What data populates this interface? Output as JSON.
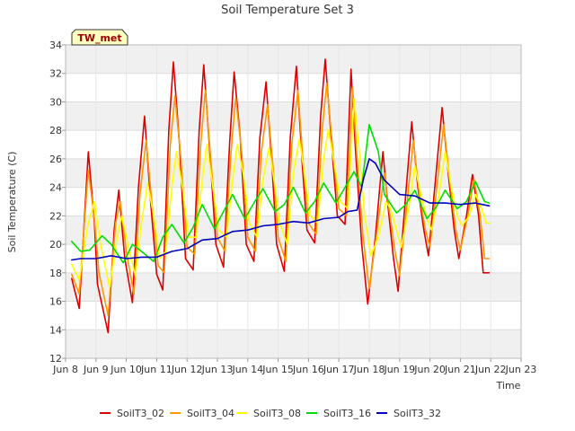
{
  "chart_data": {
    "type": "line",
    "title": "Soil Temperature Set 3",
    "xlabel": "Time",
    "ylabel": "Soil Temperature (C)",
    "station_label": "TW_met",
    "xlim": [
      8,
      23
    ],
    "ylim": [
      12,
      34
    ],
    "x_ticks": [
      8,
      9,
      10,
      11,
      12,
      13,
      14,
      15,
      16,
      17,
      18,
      19,
      20,
      21,
      22,
      23
    ],
    "x_tick_labels": [
      "Jun 8",
      "Jun 9",
      "Jun 10",
      "Jun 11",
      "Jun 12",
      "Jun 13",
      "Jun 14",
      "Jun 15",
      "Jun 16",
      "Jun 17",
      "Jun 18",
      "Jun 19",
      "Jun 20",
      "Jun 21",
      "Jun 22",
      "Jun 23"
    ],
    "y_ticks": [
      12,
      14,
      16,
      18,
      20,
      22,
      24,
      26,
      28,
      30,
      32,
      34
    ],
    "y_tick_labels": [
      "12",
      "14",
      "16",
      "18",
      "20",
      "22",
      "24",
      "26",
      "28",
      "30",
      "32",
      "34"
    ],
    "grid": true,
    "legend_position": "bottom",
    "colors": {
      "plot_band": "#f0f0f0",
      "plot_bg": "#ffffff",
      "axis": "#bbbbbb",
      "label_bg": "#ffffc0",
      "label_text": "#990000"
    },
    "series": [
      {
        "name": "SoilT3_02",
        "color": "#dd0000",
        "x": [
          8.2,
          8.45,
          8.75,
          8.95,
          9.05,
          9.4,
          9.6,
          9.75,
          9.95,
          10.2,
          10.4,
          10.6,
          10.8,
          11.0,
          11.2,
          11.4,
          11.55,
          11.75,
          11.95,
          12.2,
          12.4,
          12.55,
          12.75,
          12.95,
          13.2,
          13.4,
          13.55,
          13.75,
          13.95,
          14.2,
          14.4,
          14.6,
          14.8,
          14.95,
          15.2,
          15.4,
          15.6,
          15.8,
          15.95,
          16.2,
          16.4,
          16.55,
          16.8,
          16.95,
          17.2,
          17.4,
          17.55,
          17.75,
          17.95,
          18.2,
          18.45,
          18.6,
          18.8,
          18.95,
          19.2,
          19.4,
          19.6,
          19.8,
          19.95,
          20.2,
          20.4,
          20.6,
          20.8,
          20.95,
          21.2,
          21.4,
          21.6,
          21.75,
          21.95
        ],
        "y": [
          17.6,
          15.5,
          26.5,
          21.5,
          17.2,
          13.8,
          21.0,
          23.8,
          19.0,
          15.9,
          24.0,
          29.0,
          23.0,
          17.9,
          16.8,
          28.0,
          32.8,
          27.0,
          19.0,
          18.2,
          28.0,
          32.6,
          26.5,
          20.0,
          18.4,
          27.0,
          32.1,
          27.5,
          20.0,
          18.8,
          27.5,
          31.4,
          25.5,
          20.0,
          18.1,
          27.5,
          32.5,
          25.5,
          21.0,
          20.1,
          29.0,
          33.0,
          26.0,
          22.0,
          21.4,
          32.3,
          26.5,
          20.0,
          15.8,
          20.5,
          26.5,
          23.0,
          19.0,
          16.7,
          23.5,
          28.6,
          24.0,
          21.0,
          19.2,
          25.0,
          29.6,
          25.0,
          21.0,
          19.0,
          22.0,
          24.9,
          22.0,
          18.0,
          18.0
        ]
      },
      {
        "name": "SoilT3_04",
        "color": "#ff9900",
        "x": [
          8.2,
          8.45,
          8.75,
          8.95,
          9.1,
          9.4,
          9.65,
          9.8,
          10.0,
          10.25,
          10.45,
          10.65,
          10.85,
          11.05,
          11.25,
          11.45,
          11.6,
          11.8,
          12.0,
          12.25,
          12.45,
          12.6,
          12.8,
          13.0,
          13.25,
          13.45,
          13.6,
          13.8,
          14.0,
          14.25,
          14.45,
          14.65,
          14.85,
          15.0,
          15.25,
          15.45,
          15.65,
          15.85,
          16.0,
          16.25,
          16.45,
          16.6,
          16.85,
          17.0,
          17.25,
          17.45,
          17.6,
          17.8,
          18.0,
          18.25,
          18.5,
          18.65,
          18.85,
          19.0,
          19.25,
          19.45,
          19.65,
          19.85,
          20.0,
          20.25,
          20.45,
          20.65,
          20.85,
          21.0,
          21.25,
          21.45,
          21.65,
          21.8,
          21.95
        ],
        "y": [
          17.9,
          16.5,
          25.2,
          21.8,
          18.0,
          15.0,
          21.5,
          23.0,
          19.5,
          16.5,
          23.5,
          27.3,
          22.8,
          18.5,
          18.0,
          27.0,
          30.4,
          26.0,
          19.8,
          19.3,
          27.0,
          30.8,
          25.5,
          20.5,
          19.5,
          26.5,
          30.3,
          26.5,
          20.5,
          19.5,
          26.5,
          29.8,
          25.0,
          20.5,
          18.8,
          27.0,
          30.8,
          25.0,
          21.5,
          20.7,
          28.0,
          31.3,
          25.5,
          22.5,
          22.0,
          31.0,
          26.0,
          20.5,
          16.9,
          20.8,
          25.0,
          22.5,
          19.5,
          17.8,
          23.0,
          27.3,
          23.5,
          21.0,
          19.8,
          24.5,
          28.4,
          24.5,
          21.0,
          19.6,
          22.0,
          24.6,
          22.0,
          19.0,
          19.0
        ]
      },
      {
        "name": "SoilT3_08",
        "color": "#ffff00",
        "x": [
          8.2,
          8.45,
          8.75,
          8.95,
          9.15,
          9.45,
          9.7,
          9.85,
          10.05,
          10.3,
          10.5,
          10.7,
          10.9,
          11.1,
          11.3,
          11.5,
          11.65,
          11.85,
          12.05,
          12.3,
          12.5,
          12.65,
          12.85,
          13.05,
          13.3,
          13.5,
          13.65,
          13.85,
          14.05,
          14.3,
          14.5,
          14.7,
          14.9,
          15.05,
          15.3,
          15.5,
          15.7,
          15.9,
          16.05,
          16.3,
          16.5,
          16.65,
          16.9,
          17.05,
          17.3,
          17.5,
          17.65,
          17.85,
          18.05,
          18.3,
          18.55,
          18.7,
          18.9,
          19.05,
          19.3,
          19.5,
          19.7,
          19.9,
          20.05,
          20.3,
          20.5,
          20.7,
          20.9,
          21.05,
          21.3,
          21.5,
          21.7,
          21.85,
          21.95
        ],
        "y": [
          18.6,
          17.5,
          21.5,
          23.0,
          20.0,
          17.0,
          20.5,
          22.0,
          20.0,
          17.8,
          21.5,
          24.3,
          22.0,
          19.0,
          19.5,
          24.0,
          26.5,
          24.0,
          20.5,
          20.5,
          24.5,
          27.0,
          24.0,
          21.0,
          20.5,
          24.5,
          27.0,
          25.0,
          21.5,
          20.5,
          24.5,
          26.8,
          24.0,
          21.5,
          20.0,
          25.0,
          27.4,
          24.5,
          22.0,
          21.5,
          26.0,
          28.1,
          25.0,
          23.0,
          22.5,
          30.2,
          27.0,
          22.0,
          19.2,
          20.5,
          23.0,
          22.5,
          21.0,
          19.8,
          22.5,
          25.5,
          23.5,
          21.8,
          21.0,
          23.5,
          26.5,
          24.0,
          22.0,
          21.3,
          22.0,
          23.5,
          22.5,
          21.5,
          21.5
        ]
      },
      {
        "name": "SoilT3_16",
        "color": "#00dd00",
        "x": [
          8.2,
          8.5,
          8.8,
          9.2,
          9.5,
          9.9,
          10.2,
          10.5,
          10.9,
          11.2,
          11.5,
          11.9,
          12.2,
          12.5,
          12.9,
          13.2,
          13.5,
          13.9,
          14.2,
          14.5,
          14.9,
          15.2,
          15.5,
          15.9,
          16.2,
          16.5,
          16.9,
          17.2,
          17.5,
          17.75,
          18.0,
          18.3,
          18.5,
          18.9,
          19.2,
          19.5,
          19.9,
          20.2,
          20.5,
          20.9,
          21.2,
          21.5,
          21.8,
          21.95
        ],
        "y": [
          20.2,
          19.5,
          19.6,
          20.6,
          20.0,
          18.7,
          20.0,
          19.5,
          18.8,
          20.5,
          21.4,
          20.1,
          21.2,
          22.8,
          21.1,
          22.3,
          23.5,
          21.8,
          22.9,
          23.9,
          22.3,
          22.8,
          24.0,
          22.2,
          23.0,
          24.3,
          22.9,
          24.0,
          25.1,
          24.0,
          28.4,
          26.5,
          23.5,
          22.2,
          22.8,
          23.8,
          21.8,
          22.6,
          23.8,
          22.5,
          23.0,
          24.4,
          23.0,
          22.9
        ]
      },
      {
        "name": "SoilT3_32",
        "color": "#0000bb",
        "x": [
          8.2,
          8.5,
          9.0,
          9.5,
          10.0,
          10.5,
          11.0,
          11.5,
          12.0,
          12.5,
          13.0,
          13.5,
          14.0,
          14.5,
          15.0,
          15.5,
          16.0,
          16.5,
          17.0,
          17.3,
          17.6,
          17.8,
          18.0,
          18.2,
          18.5,
          19.0,
          19.5,
          20.0,
          20.5,
          21.0,
          21.5,
          21.95
        ],
        "y": [
          18.9,
          19.0,
          19.0,
          19.2,
          19.0,
          19.1,
          19.1,
          19.5,
          19.7,
          20.3,
          20.4,
          20.9,
          21.0,
          21.3,
          21.4,
          21.6,
          21.5,
          21.8,
          21.9,
          22.3,
          22.4,
          24.5,
          26.0,
          25.7,
          24.5,
          23.5,
          23.4,
          22.9,
          22.9,
          22.8,
          22.9,
          22.7
        ]
      }
    ]
  }
}
